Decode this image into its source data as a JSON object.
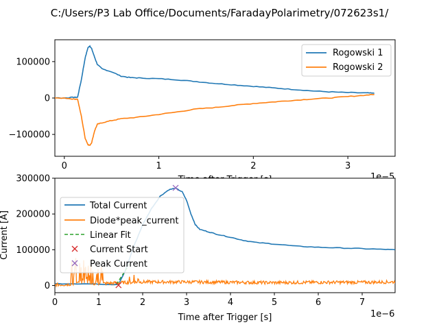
{
  "figure_title": "C:/Users/P3 Lab Office/Documents/FaradayPolarimetry/072623s1/",
  "chart_data": [
    {
      "type": "line",
      "xlabel": "Time after Trigger [s]",
      "ylabel": "",
      "x_offset_text": "1e−5",
      "xlim": [
        -0.1,
        3.5
      ],
      "ylim": [
        -160000,
        160000
      ],
      "xticks": [
        -1,
        0,
        1,
        2,
        3
      ],
      "yticks": [
        -100000,
        0,
        100000
      ],
      "legend_position": "upper-right",
      "series": [
        {
          "name": "Rogowski 1",
          "color": "#1f77b4",
          "points": [
            [
              -0.82,
              0
            ],
            [
              -0.3,
              0
            ],
            [
              -0.2,
              1000
            ],
            [
              0.0,
              0
            ],
            [
              0.1,
              2000
            ],
            [
              0.14,
              2000
            ],
            [
              0.18,
              50000
            ],
            [
              0.22,
              110000
            ],
            [
              0.25,
              138000
            ],
            [
              0.27,
              143000
            ],
            [
              0.29,
              135000
            ],
            [
              0.32,
              112000
            ],
            [
              0.35,
              92000
            ],
            [
              0.4,
              80000
            ],
            [
              0.5,
              72000
            ],
            [
              0.6,
              60000
            ],
            [
              0.7,
              56000
            ],
            [
              0.8,
              55000
            ],
            [
              1.0,
              53000
            ],
            [
              1.2,
              50000
            ],
            [
              1.4,
              45000
            ],
            [
              1.6,
              40000
            ],
            [
              1.8,
              36000
            ],
            [
              2.0,
              32000
            ],
            [
              2.2,
              28000
            ],
            [
              2.4,
              24000
            ],
            [
              2.6,
              20000
            ],
            [
              2.8,
              17000
            ],
            [
              3.0,
              15000
            ],
            [
              3.2,
              14000
            ],
            [
              3.28,
              13000
            ]
          ]
        },
        {
          "name": "Rogowski 2",
          "color": "#ff7f0e",
          "points": [
            [
              -0.82,
              0
            ],
            [
              -0.3,
              0
            ],
            [
              -0.2,
              -1000
            ],
            [
              0.0,
              0
            ],
            [
              0.1,
              -3000
            ],
            [
              0.14,
              -3000
            ],
            [
              0.18,
              -50000
            ],
            [
              0.22,
              -110000
            ],
            [
              0.25,
              -128000
            ],
            [
              0.27,
              -130000
            ],
            [
              0.29,
              -122000
            ],
            [
              0.32,
              -90000
            ],
            [
              0.35,
              -72000
            ],
            [
              0.4,
              -68000
            ],
            [
              0.5,
              -62000
            ],
            [
              0.6,
              -57000
            ],
            [
              0.8,
              -52000
            ],
            [
              1.0,
              -45000
            ],
            [
              1.2,
              -38000
            ],
            [
              1.4,
              -30000
            ],
            [
              1.6,
              -26000
            ],
            [
              1.8,
              -20000
            ],
            [
              2.0,
              -15000
            ],
            [
              2.2,
              -11000
            ],
            [
              2.4,
              -7000
            ],
            [
              2.6,
              -3000
            ],
            [
              2.8,
              0
            ],
            [
              3.0,
              4000
            ],
            [
              3.2,
              8000
            ],
            [
              3.28,
              10000
            ]
          ]
        }
      ]
    },
    {
      "type": "line",
      "xlabel": "Time after Trigger [s]",
      "ylabel": "Current [A]",
      "x_offset_text": "1e−6",
      "xlim": [
        0,
        7.75
      ],
      "ylim": [
        -20000,
        300000
      ],
      "xticks": [
        0,
        1,
        2,
        3,
        4,
        5,
        6,
        7
      ],
      "yticks": [
        0,
        100000,
        200000,
        300000
      ],
      "legend_position": "upper-left",
      "series": [
        {
          "name": "Total Current",
          "color": "#1f77b4",
          "style": "line",
          "points": [
            [
              0,
              5000
            ],
            [
              0.5,
              5000
            ],
            [
              1.0,
              4000
            ],
            [
              1.3,
              3000
            ],
            [
              1.45,
              3000
            ],
            [
              1.6,
              40000
            ],
            [
              1.8,
              110000
            ],
            [
              2.0,
              170000
            ],
            [
              2.2,
              215000
            ],
            [
              2.4,
              250000
            ],
            [
              2.6,
              268000
            ],
            [
              2.75,
              272000
            ],
            [
              2.9,
              262000
            ],
            [
              3.0,
              238000
            ],
            [
              3.1,
              200000
            ],
            [
              3.2,
              170000
            ],
            [
              3.3,
              157000
            ],
            [
              3.5,
              150000
            ],
            [
              3.7,
              143000
            ],
            [
              4.0,
              135000
            ],
            [
              4.3,
              126000
            ],
            [
              4.6,
              120000
            ],
            [
              5.0,
              116000
            ],
            [
              5.5,
              110000
            ],
            [
              6.0,
              107000
            ],
            [
              6.5,
              105000
            ],
            [
              7.0,
              103000
            ],
            [
              7.5,
              101000
            ],
            [
              7.75,
              100000
            ]
          ]
        },
        {
          "name": "Diode*peak_current",
          "color": "#ff7f0e",
          "style": "noise",
          "baseline_segments": [
            [
              0,
              2000
            ],
            [
              0.3,
              3000
            ],
            [
              0.6,
              8000
            ],
            [
              1.0,
              5000
            ],
            [
              1.5,
              8000
            ],
            [
              2.0,
              10000
            ],
            [
              3.0,
              10000
            ],
            [
              4.0,
              9000
            ],
            [
              5.0,
              8000
            ],
            [
              6.0,
              9000
            ],
            [
              7.0,
              9000
            ],
            [
              7.75,
              10000
            ]
          ],
          "spikes": [
            [
              0.38,
              70000
            ],
            [
              0.47,
              80000
            ],
            [
              0.56,
              85000
            ],
            [
              0.66,
              75000
            ],
            [
              0.76,
              65000
            ],
            [
              0.86,
              55000
            ],
            [
              0.95,
              40000
            ],
            [
              1.05,
              35000
            ],
            [
              1.7,
              25000
            ],
            [
              1.8,
              38000
            ],
            [
              1.9,
              22000
            ]
          ]
        },
        {
          "name": "Linear Fit",
          "color": "#2ca02c",
          "style": "dashed",
          "points": [
            [
              1.4,
              3000
            ],
            [
              1.7,
              60000
            ]
          ]
        },
        {
          "name": "Current Start",
          "color": "#d62728",
          "style": "x-marker",
          "points": [
            [
              1.45,
              1000
            ]
          ]
        },
        {
          "name": "Peak Current",
          "color": "#9467bd",
          "style": "x-marker",
          "points": [
            [
              2.75,
              273000
            ]
          ]
        }
      ]
    }
  ]
}
